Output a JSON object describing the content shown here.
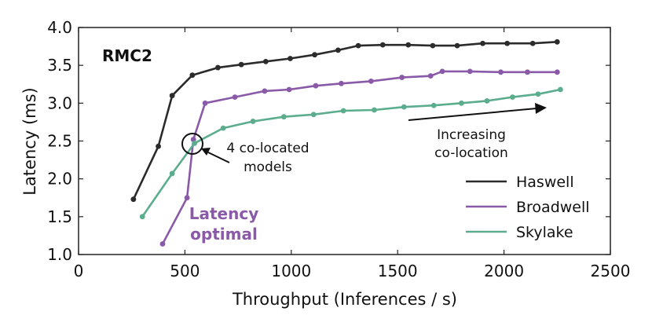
{
  "chart_data": {
    "type": "line",
    "title": "RMC2",
    "xlabel": "Throughput (Inferences / s)",
    "ylabel": "Latency (ms)",
    "xlim": [
      0,
      2500
    ],
    "ylim": [
      1.0,
      4.0
    ],
    "xticks": [
      0,
      500,
      1000,
      1500,
      2000,
      2500
    ],
    "yticks": [
      1.0,
      1.5,
      2.0,
      2.5,
      3.0,
      3.5,
      4.0
    ],
    "xtick_labels": [
      "0",
      "500",
      "1000",
      "1500",
      "2000",
      "2500"
    ],
    "ytick_labels": [
      "1.0",
      "1.5",
      "2.0",
      "2.5",
      "3.0",
      "3.5",
      "4.0"
    ],
    "grid": false,
    "legend_position": "bottom-right",
    "series": [
      {
        "name": "Haswell",
        "color": "#2b2b2b",
        "x": [
          258,
          375,
          440,
          535,
          655,
          765,
          880,
          995,
          1110,
          1220,
          1315,
          1430,
          1550,
          1665,
          1780,
          1900,
          2015,
          2135,
          2250
        ],
        "y": [
          1.73,
          2.43,
          3.1,
          3.37,
          3.47,
          3.51,
          3.55,
          3.59,
          3.64,
          3.7,
          3.76,
          3.77,
          3.77,
          3.76,
          3.76,
          3.79,
          3.79,
          3.79,
          3.81
        ]
      },
      {
        "name": "Broadwell",
        "color": "#8a5aa8",
        "x": [
          395,
          510,
          540,
          595,
          735,
          875,
          990,
          1115,
          1235,
          1375,
          1520,
          1655,
          1710,
          1840,
          1985,
          2110,
          2250
        ],
        "y": [
          1.14,
          1.75,
          2.52,
          3.0,
          3.08,
          3.16,
          3.18,
          3.23,
          3.26,
          3.29,
          3.34,
          3.36,
          3.42,
          3.42,
          3.41,
          3.41,
          3.41
        ]
      },
      {
        "name": "Skylake",
        "color": "#5bad8d",
        "x": [
          300,
          440,
          545,
          680,
          820,
          965,
          1105,
          1245,
          1390,
          1530,
          1670,
          1800,
          1920,
          2040,
          2160,
          2265
        ],
        "y": [
          1.5,
          2.07,
          2.47,
          2.67,
          2.76,
          2.82,
          2.85,
          2.9,
          2.91,
          2.95,
          2.97,
          3.0,
          3.03,
          3.08,
          3.12,
          3.18
        ]
      }
    ],
    "annotations": {
      "co_located_line1": "4 co-located",
      "co_located_line2": "models",
      "increasing_line1": "Increasing",
      "increasing_line2": "co-location",
      "latency_optimal_line1": "Latency",
      "latency_optimal_line2": "optimal"
    }
  }
}
